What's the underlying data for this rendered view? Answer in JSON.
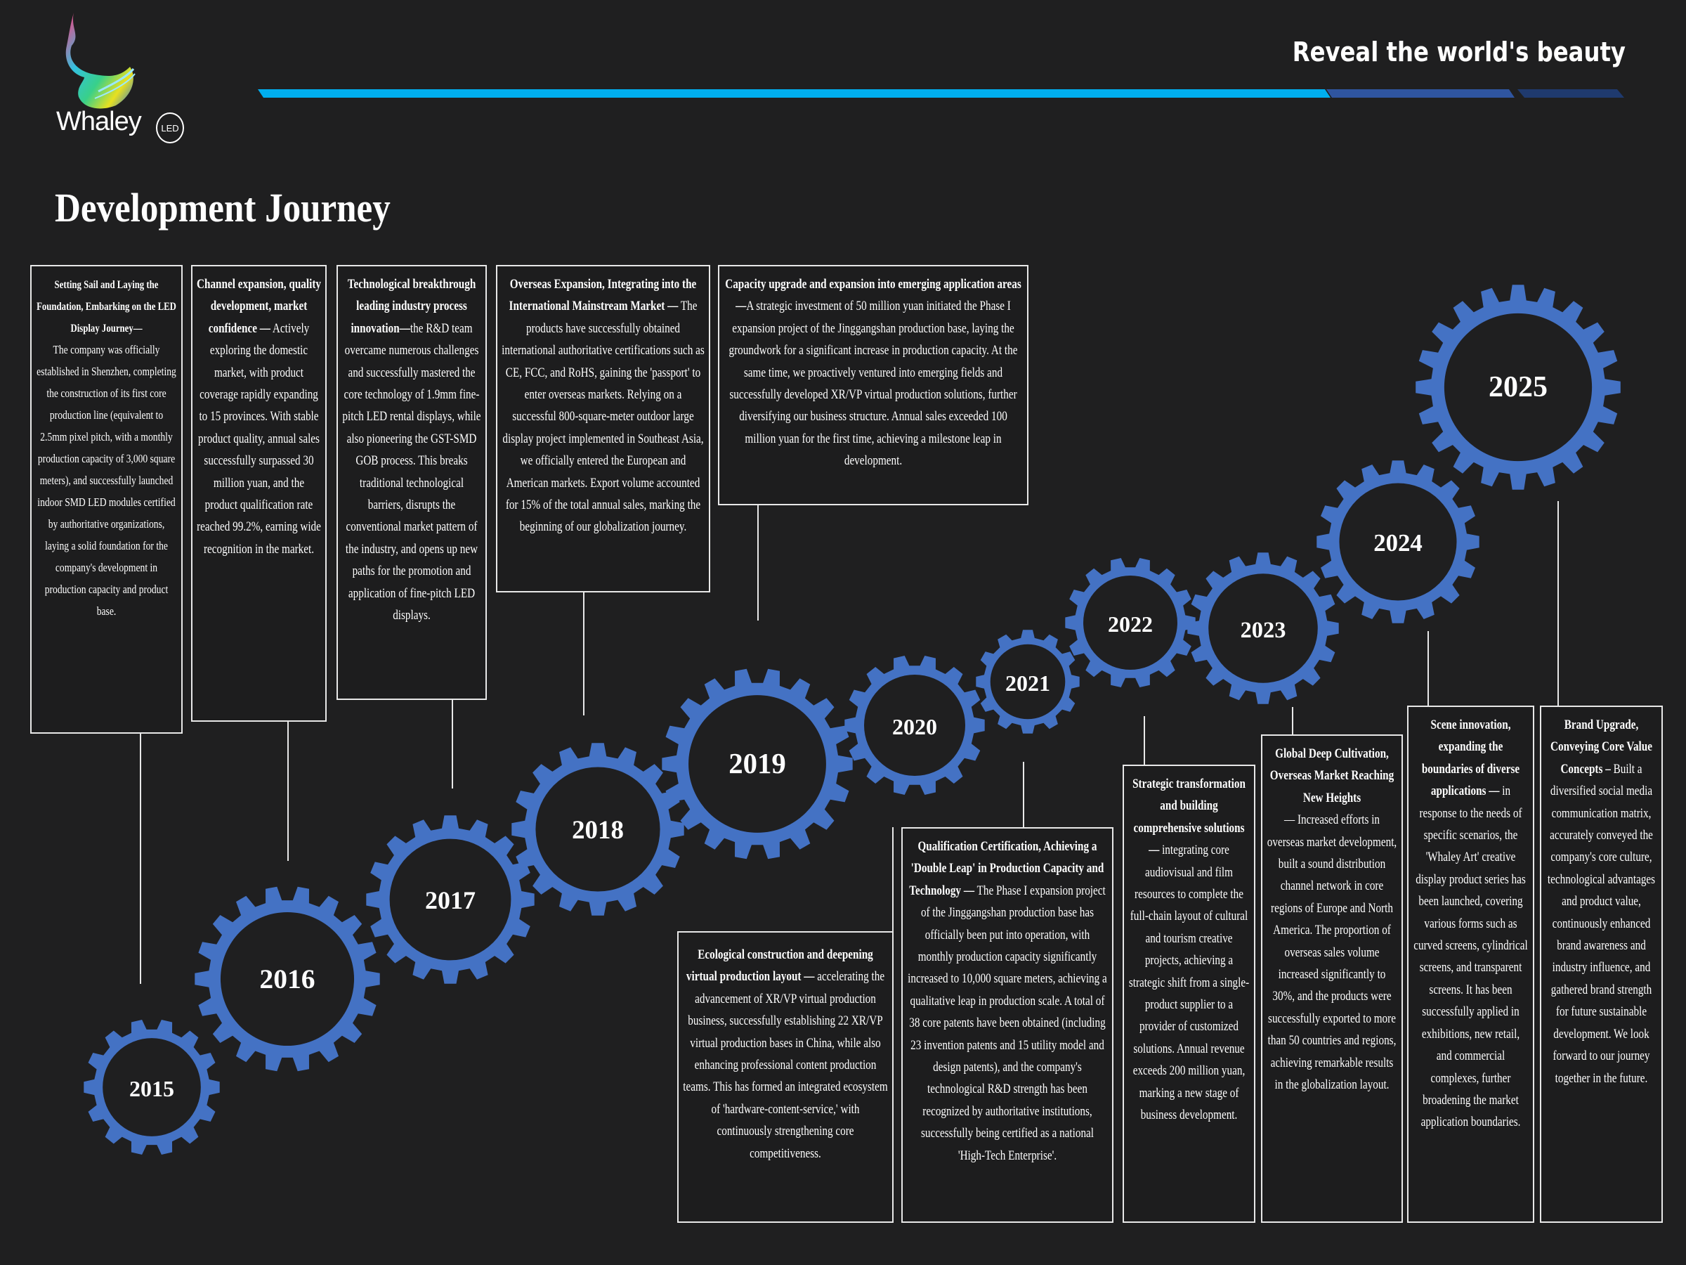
{
  "brand": {
    "name": "Whaley",
    "badge": "LED",
    "tagline": "Reveal the world's beauty"
  },
  "colors": {
    "background": "#1f1f20",
    "gear": "#4472c4",
    "stripe_light": "#00aeef",
    "stripe_mid": "#2f55a0",
    "stripe_dark": "#1f3a6e"
  },
  "page_title": "Development Journey",
  "years": [
    "2015",
    "2016",
    "2017",
    "2018",
    "2019",
    "2020",
    "2021",
    "2022",
    "2023",
    "2024",
    "2025"
  ],
  "milestones": [
    {
      "year": "2015",
      "title": "Setting Sail and Laying the Foundation, Embarking on the LED Display Journey—",
      "body": "The company was officially established in Shenzhen, completing the construction of its first core production line (equivalent to 2.5mm pixel pitch, with a monthly production capacity of 3,000 square meters), and successfully launched indoor SMD LED modules certified by authoritative organizations, laying a solid foundation for the company's development in production capacity and product base."
    },
    {
      "year": "2016",
      "title": "Channel expansion, quality development, market confidence —",
      "body": "Actively exploring the domestic market, with product coverage rapidly expanding to 15 provinces. With stable product quality, annual sales successfully surpassed 30 million yuan, and the product qualification rate reached 99.2%, earning wide recognition in the market."
    },
    {
      "year": "2017",
      "title": "Technological breakthrough leading industry process innovation—",
      "body": "the R&D team overcame numerous challenges and successfully mastered the core technology of 1.9mm fine-pitch LED rental displays, while also pioneering the GST-SMD GOB process. This breaks traditional technological barriers, disrupts the conventional market pattern of the industry, and opens up new paths for the promotion and application of fine-pitch LED displays."
    },
    {
      "year": "2018",
      "title": "Overseas Expansion, Integrating into the International Mainstream Market —",
      "body": "The products have successfully obtained international authoritative certifications such as CE, FCC, and RoHS, gaining the 'passport' to enter overseas markets. Relying on a successful 800-square-meter outdoor large display project implemented in Southeast Asia, we officially entered the European and American markets. Export volume accounted for 15% of the total annual sales, marking the beginning of our globalization journey."
    },
    {
      "year": "2019",
      "title": "Capacity upgrade and expansion into emerging application areas—",
      "body": "A strategic investment of 50 million yuan initiated the Phase I expansion project of the Jinggangshan production base, laying the groundwork for a significant increase in production capacity. At the same time, we proactively ventured into emerging fields and successfully developed XR/VP virtual production solutions, further diversifying our business structure. Annual sales exceeded 100 million yuan for the first time, achieving a milestone leap in development."
    },
    {
      "year": "2020",
      "title": "Ecological construction and deepening virtual production layout —",
      "body": "accelerating the advancement of XR/VP virtual production business, successfully establishing 22 XR/VP virtual production bases in China, while also enhancing professional content production teams. This has formed an integrated ecosystem of 'hardware-content-service,' with continuously strengthening core competitiveness."
    },
    {
      "year": "2021",
      "title": "Qualification Certification, Achieving a 'Double Leap' in Production Capacity and Technology —",
      "body": "The Phase I expansion project of the Jinggangshan production base has officially been put into operation, with monthly production capacity significantly increased to 10,000 square meters, achieving a qualitative leap in production scale. A total of 38 core patents have been obtained (including 23 invention patents and 15 utility model and design patents), and the company's technological R&D strength has been recognized by authoritative institutions, successfully being certified as a national 'High-Tech Enterprise'."
    },
    {
      "year": "2022",
      "title": "Strategic transformation and building comprehensive solutions —",
      "body": "integrating core audiovisual and film resources to complete the full-chain layout of cultural and tourism creative projects, achieving a strategic shift from a single-product supplier to a provider of customized solutions. Annual revenue exceeds 200 million yuan, marking a new stage of business development."
    },
    {
      "year": "2023",
      "title": "Global Deep Cultivation, Overseas Market Reaching New Heights",
      "body": "— Increased efforts in overseas market development, built a sound distribution channel network in core regions of Europe and North America. The proportion of overseas sales volume increased significantly to 30%, and the products were successfully exported to more than 50 countries and regions, achieving remarkable results in the globalization layout."
    },
    {
      "year": "2024",
      "title": "Scene innovation, expanding the boundaries of diverse applications —",
      "body": "in response to the needs of specific scenarios, the 'Whaley Art' creative display product series has been launched, covering various forms such as curved screens, cylindrical screens, and transparent screens. It has been successfully applied in exhibitions, new retail, and commercial complexes, further broadening the market application boundaries."
    },
    {
      "year": "2025",
      "title": "Brand Upgrade, Conveying Core Value Concepts –",
      "body": "Built a diversified social media communication matrix, accurately conveyed the company's core culture, technological advantages and product value, continuously enhanced brand awareness and industry influence, and gathered brand strength for future sustainable development. We look forward to our journey together in the future."
    }
  ]
}
